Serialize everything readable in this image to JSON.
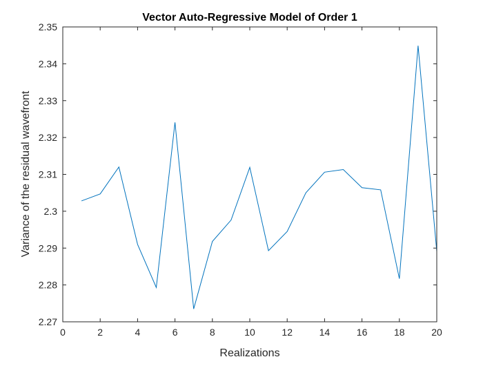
{
  "chart_data": {
    "type": "line",
    "title": "Vector Auto-Regressive Model of Order 1",
    "xlabel": "Realizations",
    "ylabel": "Variance of the residual wavefront",
    "xlim": [
      0,
      20
    ],
    "ylim": [
      2.27,
      2.35
    ],
    "xticks": [
      "0",
      "2",
      "4",
      "6",
      "8",
      "10",
      "12",
      "14",
      "16",
      "18",
      "20"
    ],
    "yticks": [
      "2.27",
      "2.28",
      "2.29",
      "2.3",
      "2.31",
      "2.32",
      "2.33",
      "2.34",
      "2.35"
    ],
    "grid": false,
    "line_color": "#0072BD",
    "series": [
      {
        "x": [
          1,
          2,
          3,
          4,
          5,
          6,
          7,
          8,
          9,
          10,
          11,
          12,
          13,
          14,
          15,
          16,
          17,
          18,
          19,
          20
        ],
        "y": [
          2.3028,
          2.3047,
          2.312,
          2.291,
          2.2793,
          2.3241,
          2.2735,
          2.2918,
          2.2976,
          2.3119,
          2.2893,
          2.2945,
          2.305,
          2.3106,
          2.3113,
          2.3064,
          2.3058,
          2.2817,
          2.3449,
          2.2891
        ]
      }
    ]
  }
}
